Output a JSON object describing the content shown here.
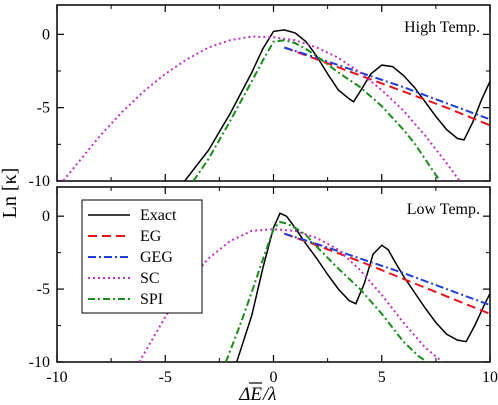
{
  "figure": {
    "ylabel": "Ln [κ]",
    "xlabel_main": "ΔE",
    "xlabel_suffix": "/λ"
  },
  "colors": {
    "Exact": "#000000",
    "EG": "#e8141c",
    "GEG": "#1f3fd6",
    "SC": "#c030c0",
    "SPI": "#1a8a1a"
  },
  "chart_data": [
    {
      "type": "line",
      "panel": "top",
      "annotation": "High Temp.",
      "xlim": [
        -10,
        10
      ],
      "ylim": [
        -10,
        2
      ],
      "xticks": [
        -10,
        -5,
        0,
        5,
        10
      ],
      "yticks": [
        0,
        -5,
        -10
      ],
      "grid": false,
      "series": [
        {
          "name": "Exact",
          "style": "solid",
          "x": [
            -4.1,
            -3.0,
            -2.0,
            -1.0,
            -0.5,
            0,
            0.5,
            1.0,
            1.5,
            2.0,
            2.5,
            3.0,
            3.5,
            3.7,
            4.0,
            4.5,
            5.0,
            5.5,
            6.0,
            6.5,
            7.0,
            7.5,
            8.0,
            8.5,
            8.8,
            9.2,
            9.6,
            10.0
          ],
          "y": [
            -10,
            -7.9,
            -5.4,
            -2.6,
            -1.0,
            0.2,
            0.3,
            0.1,
            -0.5,
            -1.5,
            -2.7,
            -3.8,
            -4.4,
            -4.6,
            -3.9,
            -2.7,
            -2.1,
            -2.2,
            -2.8,
            -3.6,
            -4.6,
            -5.6,
            -6.5,
            -7.1,
            -7.2,
            -6.0,
            -4.5,
            -3.2
          ]
        },
        {
          "name": "EG",
          "style": "dash",
          "x": [
            0.5,
            2,
            4,
            6,
            8,
            10
          ],
          "y": [
            -0.9,
            -1.7,
            -2.8,
            -3.9,
            -5.0,
            -6.2
          ]
        },
        {
          "name": "GEG",
          "style": "dashdot",
          "x": [
            0.5,
            2,
            4,
            6,
            8,
            10
          ],
          "y": [
            -0.9,
            -1.6,
            -2.6,
            -3.6,
            -4.7,
            -5.8
          ]
        },
        {
          "name": "SC",
          "style": "dot",
          "x": [
            -10,
            -9,
            -8,
            -7,
            -6,
            -5,
            -4,
            -3,
            -2,
            -1,
            0,
            1,
            2,
            3,
            4,
            5,
            6,
            7,
            8,
            9,
            10
          ],
          "y": [
            -10.5,
            -8.7,
            -6.9,
            -5.3,
            -3.9,
            -2.7,
            -1.7,
            -0.9,
            -0.4,
            -0.15,
            -0.2,
            -0.4,
            -0.9,
            -1.6,
            -2.6,
            -3.8,
            -5.2,
            -6.9,
            -8.8,
            -10.8,
            -13
          ]
        },
        {
          "name": "SPI",
          "style": "dashdot2",
          "x": [
            -3.7,
            -3.0,
            -2.0,
            -1.0,
            -0.5,
            0,
            0.5,
            1.0,
            1.5,
            2.0,
            3.0,
            4.0,
            5.0,
            6.0,
            6.5,
            7.0,
            7.5,
            7.7
          ],
          "y": [
            -10,
            -8.5,
            -5.9,
            -3.2,
            -1.8,
            -0.5,
            -0.4,
            -0.6,
            -1.0,
            -1.5,
            -2.6,
            -3.6,
            -4.9,
            -6.5,
            -7.4,
            -8.5,
            -9.6,
            -10
          ]
        }
      ]
    },
    {
      "type": "line",
      "panel": "bottom",
      "annotation": "Low Temp.",
      "xlim": [
        -10,
        10
      ],
      "ylim": [
        -10,
        2
      ],
      "xticks": [
        -10,
        -5,
        0,
        5,
        10
      ],
      "xticklabels": [
        "-10",
        "-5",
        "0",
        "5",
        "10"
      ],
      "yticks": [
        0,
        -5,
        -10
      ],
      "grid": false,
      "legend": "top-left",
      "series": [
        {
          "name": "Exact",
          "style": "solid",
          "x": [
            -1.7,
            -1.0,
            -0.5,
            0,
            0.3,
            0.6,
            1.0,
            1.5,
            2.0,
            2.5,
            3.0,
            3.5,
            3.8,
            4.2,
            4.6,
            5.0,
            5.3,
            5.6,
            6.0,
            6.5,
            7.0,
            7.5,
            8.0,
            8.5,
            8.9,
            9.3,
            9.7,
            10.0
          ],
          "y": [
            -10,
            -6.8,
            -3.6,
            -0.8,
            0.2,
            0.0,
            -0.8,
            -1.9,
            -2.9,
            -4.0,
            -5.0,
            -5.8,
            -6.0,
            -4.6,
            -2.6,
            -2.0,
            -2.3,
            -3.1,
            -4.1,
            -5.2,
            -6.3,
            -7.3,
            -8.1,
            -8.5,
            -8.6,
            -7.5,
            -6.2,
            -5.3
          ]
        },
        {
          "name": "EG",
          "style": "dash",
          "x": [
            0.5,
            2,
            4,
            6,
            8,
            10
          ],
          "y": [
            -1.2,
            -2.0,
            -3.1,
            -4.3,
            -5.5,
            -6.7
          ]
        },
        {
          "name": "GEG",
          "style": "dashdot",
          "x": [
            0.5,
            2,
            4,
            6,
            8,
            10
          ],
          "y": [
            -1.2,
            -1.9,
            -2.9,
            -3.9,
            -5.0,
            -6.1
          ]
        },
        {
          "name": "SC",
          "style": "dot",
          "x": [
            -6.2,
            -5,
            -4,
            -3,
            -2,
            -1,
            0,
            1,
            2,
            3,
            4,
            5,
            6,
            7,
            7.8
          ],
          "y": [
            -10,
            -6.9,
            -4.6,
            -2.9,
            -1.7,
            -1.0,
            -0.9,
            -1.0,
            -1.5,
            -2.3,
            -3.7,
            -5.4,
            -7.3,
            -9.0,
            -10
          ]
        },
        {
          "name": "SPI",
          "style": "dashdot2",
          "x": [
            -2.2,
            -1.5,
            -1.0,
            -0.5,
            0,
            0.3,
            0.6,
            1.0,
            1.5,
            2.0,
            3.0,
            4.0,
            5.0,
            6.0,
            6.7,
            7.1
          ],
          "y": [
            -10,
            -7.3,
            -5.2,
            -3.0,
            -0.9,
            -0.4,
            -0.5,
            -0.8,
            -1.3,
            -2.1,
            -3.6,
            -5.0,
            -6.7,
            -8.6,
            -9.6,
            -10
          ]
        }
      ]
    }
  ]
}
